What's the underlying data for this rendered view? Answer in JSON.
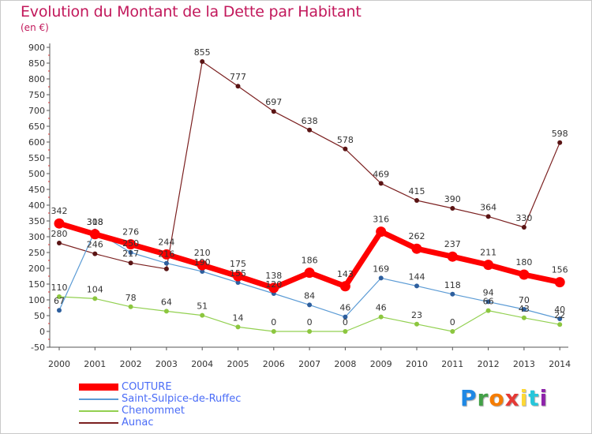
{
  "chart_data": {
    "type": "line",
    "title": "Evolution du Montant de la Dette par Habitant",
    "subtitle": "(en €)",
    "x": [
      "2000",
      "2001",
      "2002",
      "2003",
      "2004",
      "2005",
      "2006",
      "2007",
      "2008",
      "2009",
      "2010",
      "2011",
      "2012",
      "2013",
      "2014"
    ],
    "yticks": [
      -50,
      0,
      50,
      100,
      150,
      200,
      250,
      300,
      350,
      400,
      450,
      500,
      550,
      600,
      650,
      700,
      750,
      800,
      850,
      900
    ],
    "ylim": [
      -50,
      900
    ],
    "grid": false,
    "legend_position": "bottom-left",
    "series": [
      {
        "name": "COUTURE",
        "color": "#ff0000",
        "values": [
          342,
          308,
          276,
          244,
          210,
          175,
          138,
          186,
          143,
          316,
          262,
          237,
          211,
          180,
          156
        ],
        "labels": [
          "342",
          "308",
          "276",
          "244",
          "210",
          "175",
          "138",
          "186",
          "143",
          "316",
          "262",
          "237",
          "211",
          "180",
          "156"
        ]
      },
      {
        "name": "Saint-Sulpice-de-Ruffec",
        "color": "#5b9bd5",
        "values": [
          67,
          318,
          250,
          216,
          190,
          155,
          120,
          84,
          46,
          169,
          144,
          118,
          94,
          70,
          40
        ],
        "labels": [
          "67",
          "318",
          "250",
          "216",
          "190",
          "155",
          "120",
          "84",
          "46",
          "169",
          "144",
          "118",
          "94",
          "70",
          "40"
        ]
      },
      {
        "name": "Chenommet",
        "color": "#92d050",
        "values": [
          110,
          104,
          78,
          64,
          51,
          14,
          0,
          0,
          0,
          46,
          23,
          0,
          66,
          43,
          22
        ],
        "labels": [
          "110",
          "104",
          "78",
          "64",
          "51",
          "14",
          "0",
          "0",
          "0",
          "46",
          "23",
          "0",
          "66",
          "43",
          "22"
        ]
      },
      {
        "name": "Aunac",
        "color": "#7b2020",
        "values": [
          280,
          246,
          217,
          198,
          855,
          777,
          697,
          638,
          578,
          469,
          415,
          390,
          364,
          330,
          598
        ],
        "labels": [
          "280",
          "246",
          "217",
          "",
          "855",
          "777",
          "697",
          "638",
          "578",
          "469",
          "415",
          "390",
          "364",
          "330",
          "598"
        ]
      }
    ]
  },
  "logo": {
    "letters": [
      "P",
      "r",
      "o",
      "x",
      "i",
      "t",
      "i"
    ],
    "colors": [
      "#1e88e5",
      "#43a047",
      "#f57c00",
      "#e53935",
      "#fdd835",
      "#26c6da",
      "#8e24aa"
    ]
  }
}
